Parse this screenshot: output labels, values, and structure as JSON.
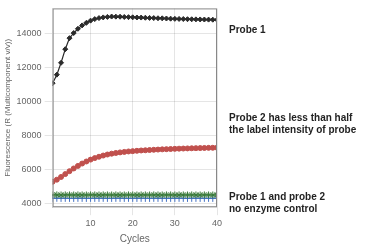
{
  "chart_data": {
    "type": "line",
    "xlabel": "Cycles",
    "ylabel": "Fluorescence (R (Multicomponent v/v))",
    "xlim": [
      1,
      40
    ],
    "ylim": [
      3800,
      15500
    ],
    "xticks": [
      10,
      20,
      30,
      40
    ],
    "yticks": [
      4000,
      6000,
      8000,
      10000,
      12000,
      14000
    ],
    "grid": true,
    "annotations": [
      "Probe 1",
      "Probe 2 has less than half\nthe label intensity of probe",
      "Probe 1 and probe 2\nno enzyme control"
    ],
    "x": [
      1,
      2,
      3,
      4,
      5,
      6,
      7,
      8,
      9,
      10,
      11,
      12,
      13,
      14,
      15,
      16,
      17,
      18,
      19,
      20,
      21,
      22,
      23,
      24,
      25,
      26,
      27,
      28,
      29,
      30,
      31,
      32,
      33,
      34,
      35,
      36,
      37,
      38,
      39,
      40
    ],
    "series": [
      {
        "color": "#2b2b2b",
        "marker": "diamond",
        "values": [
          11100,
          11600,
          12300,
          13100,
          13750,
          14050,
          14300,
          14500,
          14650,
          14780,
          14870,
          14930,
          14970,
          15000,
          15020,
          15015,
          15010,
          14995,
          14985,
          14975,
          14965,
          14960,
          14950,
          14940,
          14930,
          14920,
          14915,
          14905,
          14895,
          14885,
          14880,
          14875,
          14865,
          14860,
          14855,
          14850,
          14845,
          14840,
          14835,
          14830
        ]
      },
      {
        "color": "#c0504d",
        "marker": "circle",
        "values": [
          5300,
          5420,
          5580,
          5750,
          5920,
          6080,
          6230,
          6370,
          6490,
          6600,
          6690,
          6770,
          6840,
          6900,
          6950,
          6990,
          7025,
          7055,
          7080,
          7100,
          7120,
          7138,
          7150,
          7165,
          7180,
          7192,
          7205,
          7216,
          7225,
          7235,
          7245,
          7252,
          7260,
          7268,
          7274,
          7280,
          7286,
          7292,
          7297,
          7305
        ]
      },
      {
        "color": "#3a7a3a",
        "marker": "star",
        "values": [
          4520,
          4525,
          4518,
          4522,
          4520,
          4518,
          4522,
          4520,
          4518,
          4522,
          4520,
          4518,
          4522,
          4520,
          4518,
          4522,
          4520,
          4518,
          4522,
          4520,
          4518,
          4522,
          4520,
          4518,
          4522,
          4520,
          4518,
          4522,
          4520,
          4518,
          4522,
          4520,
          4518,
          4522,
          4520,
          4518,
          4522,
          4520,
          4518,
          4522
        ]
      },
      {
        "color": "#4472c4",
        "marker": "plus",
        "values": [
          4320,
          4325,
          4318,
          4322,
          4320,
          4318,
          4322,
          4320,
          4318,
          4322,
          4320,
          4318,
          4322,
          4320,
          4318,
          4322,
          4320,
          4318,
          4322,
          4320,
          4318,
          4322,
          4320,
          4318,
          4322,
          4320,
          4318,
          4322,
          4320,
          4318,
          4322,
          4320,
          4318,
          4322,
          4320,
          4318,
          4322,
          4320,
          4318,
          4322
        ]
      }
    ]
  }
}
